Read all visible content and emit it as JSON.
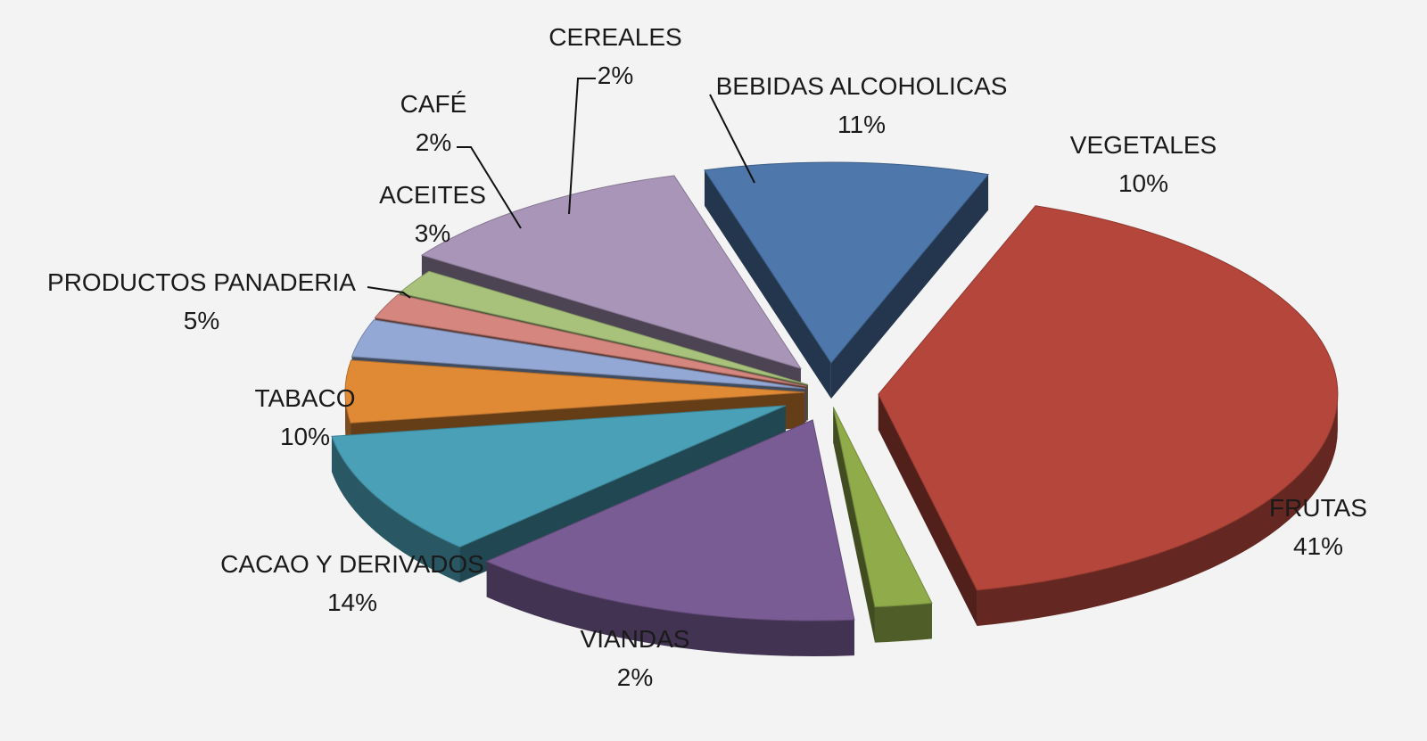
{
  "chart_data": {
    "type": "pie",
    "title": "",
    "slices": [
      {
        "label": "FRUTAS",
        "value": 41,
        "display": "41%",
        "color": "#b5463c"
      },
      {
        "label": "VIANDAS",
        "value": 2,
        "display": "2%",
        "color": "#90ab4a"
      },
      {
        "label": "CACAO Y DERIVADOS",
        "value": 14,
        "display": "14%",
        "color": "#7a5c95"
      },
      {
        "label": "TABACO",
        "value": 10,
        "display": "10%",
        "color": "#4aa0b6"
      },
      {
        "label": "PRODUCTOS PANADERIA",
        "value": 5,
        "display": "5%",
        "color": "#e08a36"
      },
      {
        "label": "ACEITES",
        "value": 3,
        "display": "3%",
        "color": "#93a8d4"
      },
      {
        "label": "CAFÉ",
        "value": 2,
        "display": "2%",
        "color": "#d5867e"
      },
      {
        "label": "CEREALES",
        "value": 2,
        "display": "2%",
        "color": "#a8c27c"
      },
      {
        "label": "BEBIDAS ALCOHOLICAS",
        "value": 11,
        "display": "11%",
        "color": "#a995b8"
      },
      {
        "label": "VEGETALES",
        "value": 10,
        "display": "10%",
        "color": "#4e77ab"
      }
    ],
    "legend": "none",
    "style": "3d-exploded"
  }
}
